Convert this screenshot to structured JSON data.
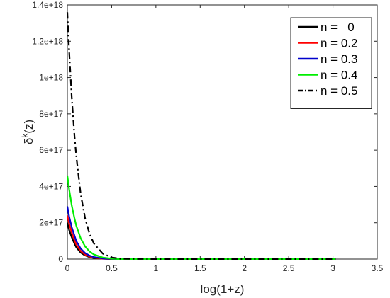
{
  "chart_data": {
    "type": "line",
    "title": "",
    "xlabel": "log(1+z)",
    "ylabel_main": "δ",
    "ylabel_sup": "k",
    "ylabel_tail": "(z)",
    "xlim": [
      0,
      3.5
    ],
    "ylim": [
      0,
      1.4e+18
    ],
    "xticks": [
      0,
      0.5,
      1,
      1.5,
      2,
      2.5,
      3,
      3.5
    ],
    "xtick_labels": [
      "0",
      "0.5",
      "1",
      "1.5",
      "2",
      "2.5",
      "3",
      "3.5"
    ],
    "yticks": [
      0,
      2e+17,
      4e+17,
      6e+17,
      8e+17,
      1e+18,
      1.2e+18,
      1.4e+18
    ],
    "ytick_labels": [
      "0",
      "2e+17",
      "4e+17",
      "6e+17",
      "8e+17",
      "1e+18",
      "1.2e+18",
      "1.4e+18"
    ],
    "grid": false,
    "legend_position": "top-right",
    "series": [
      {
        "name": "n =   0",
        "color": "#000000",
        "dash": "solid",
        "x": [
          0,
          0.02,
          0.05,
          0.08,
          0.1,
          0.15,
          0.2,
          0.25,
          0.3,
          0.4,
          0.5,
          0.6,
          1.0,
          2.0,
          3.03
        ],
        "y": [
          2e+17,
          1.6e+17,
          1.2e+17,
          8.5e+16,
          6.5e+16,
          3.6e+16,
          2e+16,
          1.1e+16,
          6000000000000000.0,
          1800000000000000.0,
          500000000000000.0,
          0,
          0,
          0,
          0
        ]
      },
      {
        "name": "n = 0.2",
        "color": "#ff0000",
        "dash": "solid",
        "x": [
          0,
          0.02,
          0.05,
          0.08,
          0.1,
          0.15,
          0.2,
          0.25,
          0.3,
          0.4,
          0.5,
          0.6,
          1.0,
          2.0,
          3.03
        ],
        "y": [
          2.4e+17,
          1.95e+17,
          1.45e+17,
          1.05e+17,
          8e+16,
          4.5e+16,
          2.5e+16,
          1.4e+16,
          8000000000000000.0,
          2500000000000000.0,
          700000000000000.0,
          0,
          0,
          0,
          0
        ]
      },
      {
        "name": "n = 0.3",
        "color": "#0000cc",
        "dash": "solid",
        "x": [
          0,
          0.02,
          0.05,
          0.08,
          0.1,
          0.15,
          0.2,
          0.25,
          0.3,
          0.4,
          0.5,
          0.6,
          1.0,
          2.0,
          3.03
        ],
        "y": [
          2.9e+17,
          2.35e+17,
          1.75e+17,
          1.3e+17,
          1e+17,
          5.8e+16,
          3.3e+16,
          1.9e+16,
          1.1e+16,
          3500000000000000.0,
          1000000000000000.0,
          0,
          0,
          0,
          0
        ]
      },
      {
        "name": "n = 0.4",
        "color": "#00ee00",
        "dash": "solid",
        "x": [
          0,
          0.02,
          0.05,
          0.08,
          0.1,
          0.15,
          0.2,
          0.25,
          0.3,
          0.4,
          0.5,
          0.6,
          1.0,
          2.0,
          3.03
        ],
        "y": [
          4.6e+17,
          3.85e+17,
          2.95e+17,
          2.25e+17,
          1.85e+17,
          1.15e+17,
          7e+16,
          4.2e+16,
          2.5e+16,
          8500000000000000.0,
          2500000000000000.0,
          0,
          0,
          0,
          0
        ]
      },
      {
        "name": "n = 0.5",
        "color": "#000000",
        "dash": "dashdot",
        "x": [
          0,
          0.02,
          0.05,
          0.08,
          0.1,
          0.15,
          0.2,
          0.25,
          0.3,
          0.4,
          0.5,
          0.6,
          1.0,
          2.0,
          3.03
        ],
        "y": [
          1.36e+18,
          1.15e+18,
          8.9e+17,
          6.8e+17,
          5.7e+17,
          3.6e+17,
          2.25e+17,
          1.4e+17,
          8.5e+16,
          3e+16,
          9000000000000000.0,
          2000000000000000.0,
          0,
          0,
          0
        ]
      }
    ]
  }
}
